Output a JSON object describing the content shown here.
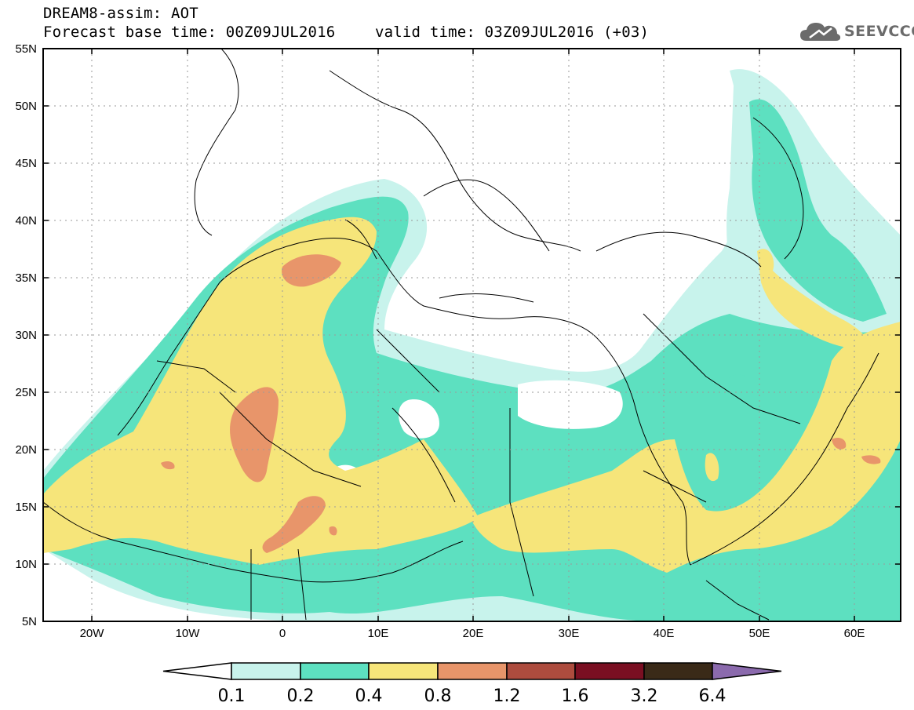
{
  "title": {
    "line1": "DREAM8-assim: AOT",
    "line2_base": "Forecast base time: 00Z09JUL2016",
    "line2_valid": "valid time: 03Z09JUL2016 (+03)"
  },
  "logo": {
    "text": "SEEVCCC",
    "icon": "cloud-icon"
  },
  "map": {
    "lon_range": [
      -25,
      65
    ],
    "lat_range": [
      5,
      55
    ],
    "lat_ticks": [
      "5N",
      "10N",
      "15N",
      "20N",
      "25N",
      "30N",
      "35N",
      "40N",
      "45N",
      "50N",
      "55N"
    ],
    "lon_ticks": [
      "20W",
      "10W",
      "0",
      "10E",
      "20E",
      "30E",
      "40E",
      "50E",
      "60E"
    ]
  },
  "colorbar": {
    "levels": [
      "0.1",
      "0.2",
      "0.4",
      "0.8",
      "1.2",
      "1.6",
      "3.2",
      "6.4"
    ],
    "colors": [
      "#c8f3ec",
      "#5de0c0",
      "#f6e57a",
      "#e8956a",
      "#ad4c3e",
      "#7a0f22",
      "#3a2a18",
      "#8b6aad"
    ],
    "under_color": "#ffffff"
  }
}
